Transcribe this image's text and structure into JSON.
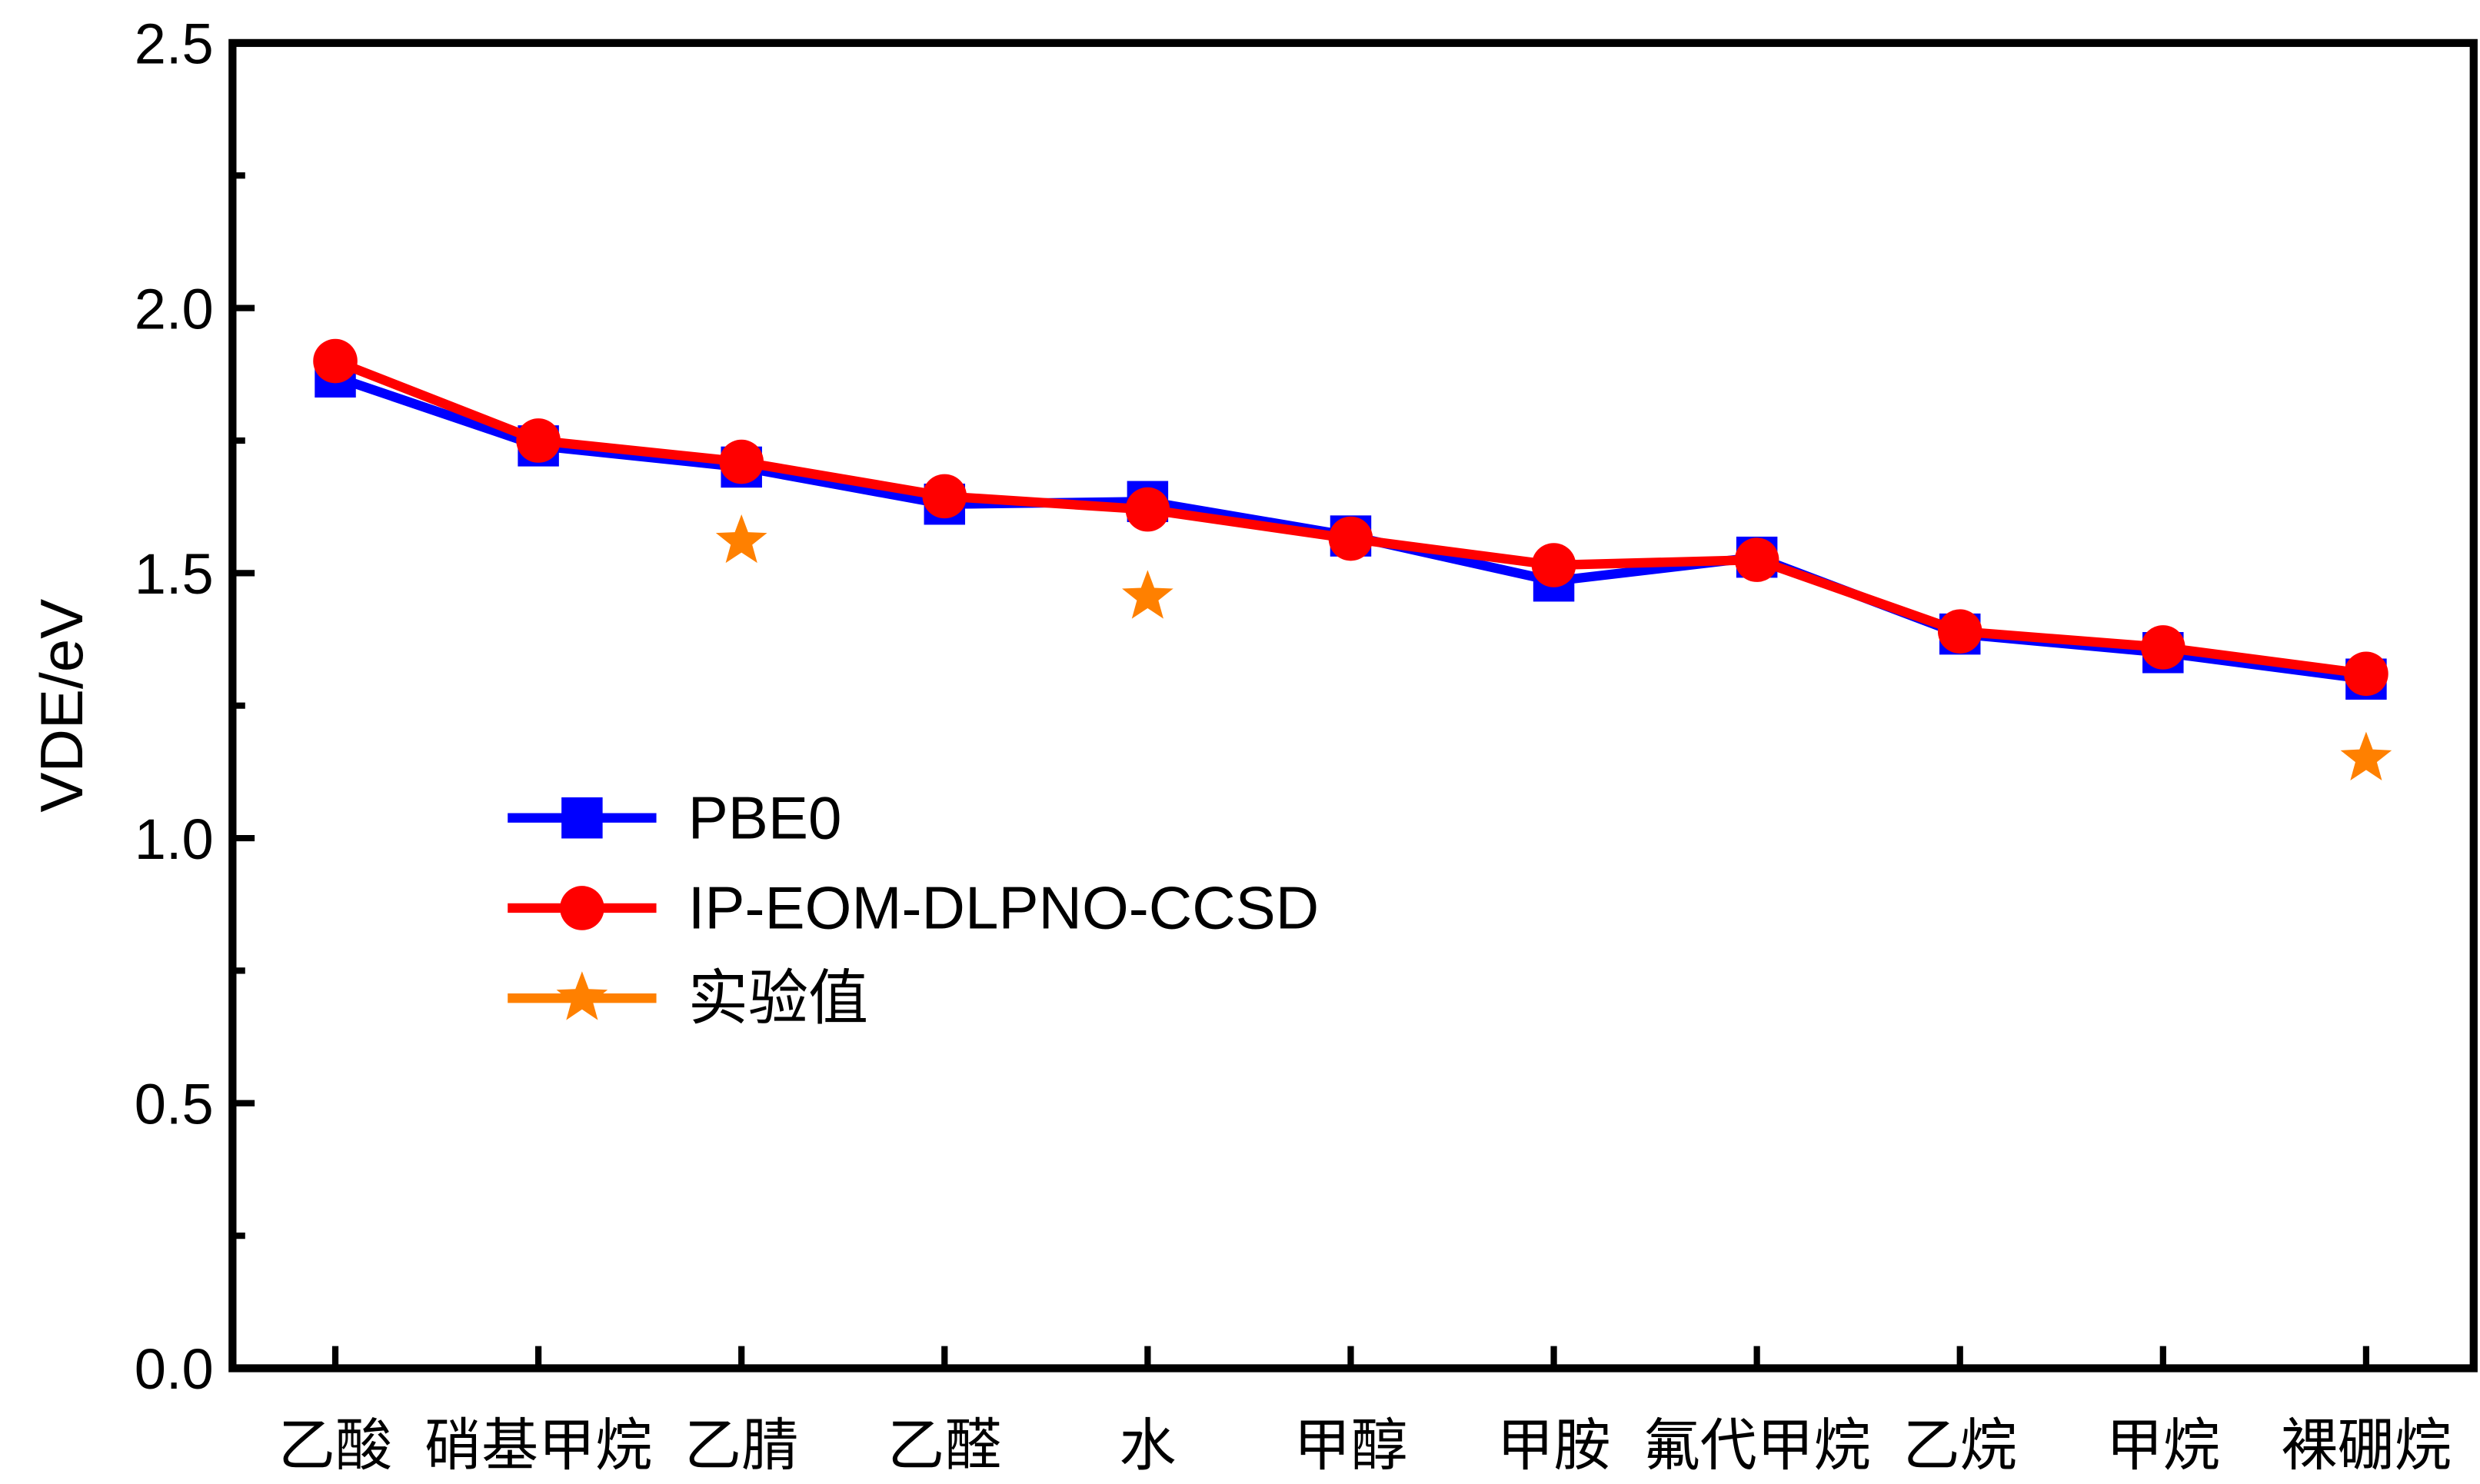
{
  "chart_data": {
    "type": "line",
    "title": "",
    "xlabel": "",
    "ylabel": "VDE/eV",
    "ylim": [
      0,
      2.5
    ],
    "yticks": [
      "0.0",
      "0.5",
      "1.0",
      "1.5",
      "2.0",
      "2.5"
    ],
    "categories": [
      "乙酸",
      "硝基甲烷",
      "乙腈",
      "乙醛",
      "水",
      "甲醇",
      "甲胺",
      "氟代甲烷",
      "乙烷",
      "甲烷",
      "裸硼烷"
    ],
    "legend_position": "center-left",
    "series": [
      {
        "name": "PBE0",
        "marker": "square",
        "color": "#0000FF",
        "values": [
          1.87,
          1.74,
          1.7,
          1.63,
          1.635,
          1.57,
          1.485,
          1.53,
          1.385,
          1.35,
          1.3
        ]
      },
      {
        "name": "IP-EOM-DLPNO-CCSD",
        "marker": "circle",
        "color": "#FF0000",
        "values": [
          1.9,
          1.75,
          1.71,
          1.645,
          1.62,
          1.565,
          1.515,
          1.525,
          1.39,
          1.36,
          1.31
        ]
      },
      {
        "name": "实验值",
        "marker": "star",
        "color": "#FF8000",
        "values": [
          null,
          null,
          1.56,
          null,
          1.455,
          null,
          null,
          null,
          null,
          null,
          1.15
        ]
      }
    ]
  }
}
